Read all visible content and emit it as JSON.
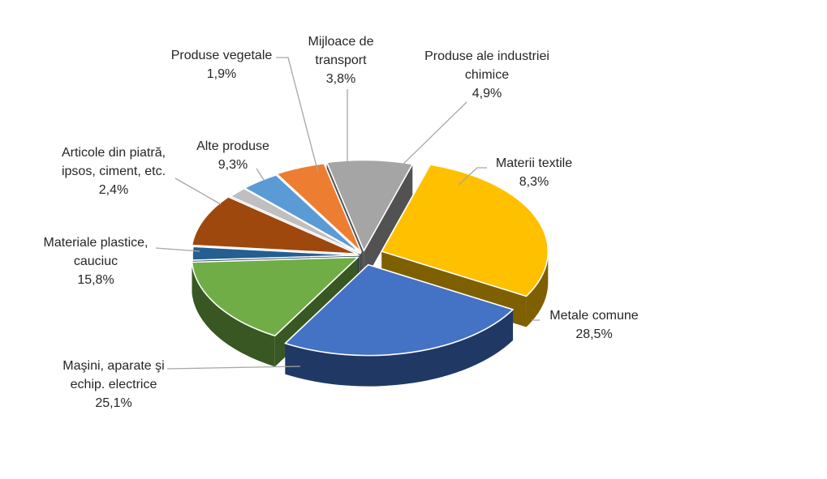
{
  "chart_data": {
    "type": "pie",
    "title": "",
    "style": "3d-exploded",
    "slices": [
      {
        "name": "Metale comune",
        "value_label": "28,5%",
        "value": 28.5,
        "color": "#FFC000",
        "side": "#7F6000"
      },
      {
        "name": "Maşini, aparate şi echip. electrice",
        "value_label": "25,1%",
        "value": 25.1,
        "color": "#4472C4",
        "side": "#203864"
      },
      {
        "name": "Materiale plastice, cauciuc",
        "value_label": "15,8%",
        "value": 15.8,
        "color": "#70AD47",
        "side": "#385723"
      },
      {
        "name": "Articole din piatră, ipsos, ciment, etc.",
        "value_label": "2,4%",
        "value": 2.4,
        "color": "#255E91",
        "side": "#0E2841"
      },
      {
        "name": "Alte produse",
        "value_label": "9,3%",
        "value": 9.3,
        "color": "#9E480E",
        "side": "#4F240A"
      },
      {
        "name": "Produse vegetale",
        "value_label": "1,9%",
        "value": 1.9,
        "color": "#BFBFBF",
        "side": "#595959"
      },
      {
        "name": "Mijloace de transport",
        "value_label": "3,8%",
        "value": 3.8,
        "color": "#5B9BD5",
        "side": "#1F4E79"
      },
      {
        "name": "Produse ale industriei chimice",
        "value_label": "4,9%",
        "value": 4.9,
        "color": "#ED7D31",
        "side": "#843C0C"
      },
      {
        "name": "Materii textile",
        "value_label": "8,3%",
        "value": 8.3,
        "color": "#A5A5A5",
        "side": "#525252"
      }
    ],
    "legend": "none",
    "data_labels": "outside-with-leader-lines"
  }
}
